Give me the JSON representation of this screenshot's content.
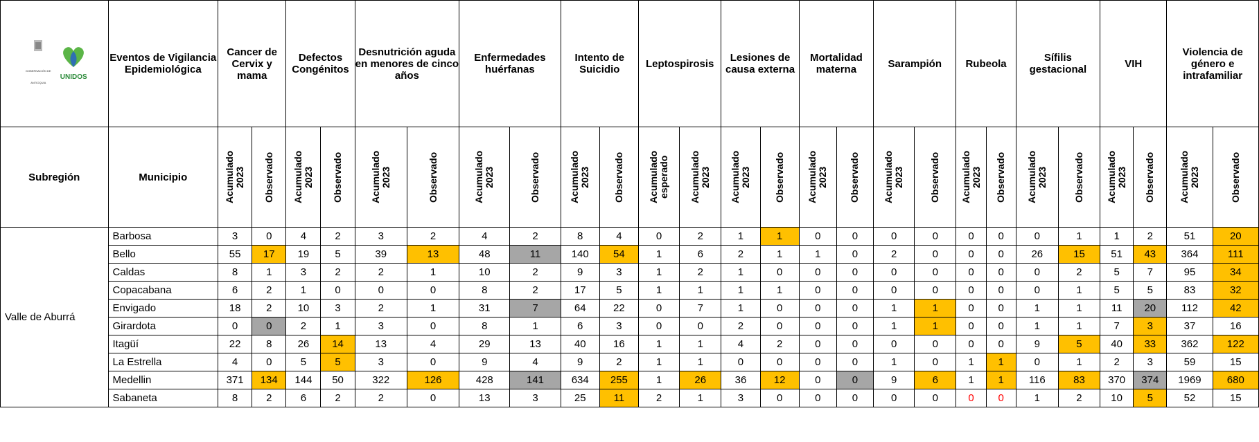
{
  "header": {
    "logo_text": "GOBERNACIÓN DE ANTIOQUIA",
    "logo_brand": "UNIDOS",
    "events_label": "Eventos de Vigilancia Epidemiológica",
    "subregion_label": "Subregión",
    "municipio_label": "Municipio",
    "groups": [
      {
        "name": "Cancer de Cervix y mama",
        "columns": [
          "Acumulado 2023",
          "Observado"
        ]
      },
      {
        "name": "Defectos Congénitos",
        "columns": [
          "Acumulado 2023",
          "Observado"
        ]
      },
      {
        "name": "Desnutrición aguda en menores de cinco años",
        "columns": [
          "Acumulado 2023",
          "Observado"
        ]
      },
      {
        "name": "Enfermedades huérfanas",
        "columns": [
          "Acumulado 2023",
          "Observado"
        ]
      },
      {
        "name": "Intento de Suicidio",
        "columns": [
          "Acumulado 2023",
          "Observado"
        ]
      },
      {
        "name": "Leptospirosis",
        "columns": [
          "Acumulado esperado",
          "Acumulado 2023"
        ]
      },
      {
        "name": "Lesiones de causa externa",
        "columns": [
          "Acumulado 2023",
          "Observado"
        ]
      },
      {
        "name": "Mortalidad materna",
        "columns": [
          "Acumulado 2023",
          "Observado"
        ]
      },
      {
        "name": "Sarampión",
        "columns": [
          "Acumulado 2023",
          "Observado"
        ]
      },
      {
        "name": "Rubeola",
        "columns": [
          "Acumulado 2023",
          "Observado"
        ]
      },
      {
        "name": "Sífilis gestacional",
        "columns": [
          "Acumulado 2023",
          "Observado"
        ]
      },
      {
        "name": "VIH",
        "columns": [
          "Acumulado 2023",
          "Observado"
        ]
      },
      {
        "name": "Violencia de género e intrafamiliar",
        "columns": [
          "Acumulado 2023",
          "Observado"
        ]
      }
    ]
  },
  "table": {
    "subregion": "Valle de Aburrá",
    "colors": {
      "orange": "#ffc000",
      "gray": "#a6a6a6",
      "red": "#ff0000"
    },
    "rows": [
      {
        "municipio": "Barbosa",
        "values": [
          3,
          0,
          4,
          2,
          3,
          2,
          4,
          2,
          8,
          4,
          0,
          2,
          1,
          1,
          0,
          0,
          0,
          0,
          0,
          0,
          0,
          1,
          1,
          2,
          51,
          20
        ],
        "orange": [
          13,
          25
        ],
        "gray": [],
        "red": []
      },
      {
        "municipio": "Bello",
        "values": [
          55,
          17,
          19,
          5,
          39,
          13,
          48,
          11,
          140,
          54,
          1,
          6,
          2,
          1,
          1,
          0,
          2,
          0,
          0,
          0,
          26,
          15,
          51,
          43,
          364,
          111
        ],
        "orange": [
          1,
          5,
          9,
          21,
          23,
          25
        ],
        "gray": [
          7
        ],
        "red": []
      },
      {
        "municipio": "Caldas",
        "values": [
          8,
          1,
          3,
          2,
          2,
          1,
          10,
          2,
          9,
          3,
          1,
          2,
          1,
          0,
          0,
          0,
          0,
          0,
          0,
          0,
          0,
          2,
          5,
          7,
          95,
          34
        ],
        "orange": [
          25
        ],
        "gray": [],
        "red": []
      },
      {
        "municipio": "Copacabana",
        "values": [
          6,
          2,
          1,
          0,
          0,
          0,
          8,
          2,
          17,
          5,
          1,
          1,
          1,
          1,
          0,
          0,
          0,
          0,
          0,
          0,
          0,
          1,
          5,
          5,
          83,
          32
        ],
        "orange": [
          25
        ],
        "gray": [],
        "red": []
      },
      {
        "municipio": "Envigado",
        "values": [
          18,
          2,
          10,
          3,
          2,
          1,
          31,
          7,
          64,
          22,
          0,
          7,
          1,
          0,
          0,
          0,
          1,
          1,
          0,
          0,
          1,
          1,
          11,
          20,
          112,
          42
        ],
        "orange": [
          17,
          25
        ],
        "gray": [
          7,
          23
        ],
        "red": []
      },
      {
        "municipio": "Girardota",
        "values": [
          0,
          0,
          2,
          1,
          3,
          0,
          8,
          1,
          6,
          3,
          0,
          0,
          2,
          0,
          0,
          0,
          1,
          1,
          0,
          0,
          1,
          1,
          7,
          3,
          37,
          16
        ],
        "orange": [
          17,
          23
        ],
        "gray": [
          1
        ],
        "red": []
      },
      {
        "municipio": "Itagüí",
        "values": [
          22,
          8,
          26,
          14,
          13,
          4,
          29,
          13,
          40,
          16,
          1,
          1,
          4,
          2,
          0,
          0,
          0,
          0,
          0,
          0,
          9,
          5,
          40,
          33,
          362,
          122
        ],
        "orange": [
          3,
          21,
          23,
          25
        ],
        "gray": [],
        "red": []
      },
      {
        "municipio": "La Estrella",
        "values": [
          4,
          0,
          5,
          5,
          3,
          0,
          9,
          4,
          9,
          2,
          1,
          1,
          0,
          0,
          0,
          0,
          1,
          0,
          1,
          1,
          0,
          1,
          2,
          3,
          59,
          15
        ],
        "orange": [
          3,
          19
        ],
        "gray": [],
        "red": []
      },
      {
        "municipio": "Medellin",
        "values": [
          371,
          134,
          144,
          50,
          322,
          126,
          428,
          141,
          634,
          255,
          1,
          26,
          36,
          12,
          0,
          0,
          9,
          6,
          1,
          1,
          116,
          83,
          370,
          374,
          1969,
          680
        ],
        "orange": [
          1,
          5,
          9,
          11,
          13,
          17,
          19,
          21,
          25
        ],
        "gray": [
          7,
          15,
          23
        ],
        "red": []
      },
      {
        "municipio": "Sabaneta",
        "values": [
          8,
          2,
          6,
          2,
          2,
          0,
          13,
          3,
          25,
          11,
          2,
          1,
          3,
          0,
          0,
          0,
          0,
          0,
          0,
          0,
          1,
          2,
          10,
          5,
          52,
          15
        ],
        "orange": [
          9,
          23
        ],
        "gray": [],
        "red": [
          18,
          19
        ]
      }
    ]
  }
}
